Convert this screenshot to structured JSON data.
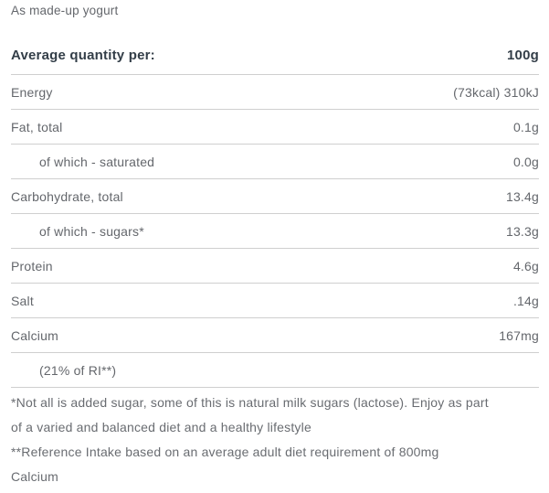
{
  "subtitle": "As made-up yogurt",
  "table": {
    "header": {
      "label": "Average quantity per:",
      "value": "100g"
    },
    "rows": [
      {
        "label": "Energy",
        "value": "(73kcal) 310kJ",
        "indent": false
      },
      {
        "label": "Fat, total",
        "value": "0.1g",
        "indent": false
      },
      {
        "label": "of which - saturated",
        "value": "0.0g",
        "indent": true
      },
      {
        "label": "Carbohydrate, total",
        "value": "13.4g",
        "indent": false
      },
      {
        "label": "of which - sugars*",
        "value": "13.3g",
        "indent": true
      },
      {
        "label": "Protein",
        "value": "4.6g",
        "indent": false
      },
      {
        "label": "Salt",
        "value": ".14g",
        "indent": false
      },
      {
        "label": "Calcium",
        "value": "167mg",
        "indent": false
      },
      {
        "label": "(21% of RI**)",
        "value": "",
        "indent": true
      }
    ]
  },
  "footnotes": [
    {
      "text": "*Not all is added sugar, some of this is natural milk sugars (lactose). Enjoy as part of a varied and balanced diet and a healthy lifestyle",
      "lines": [
        "*Not all is added sugar, some of this is natural milk sugars (lactose). Enjoy as part",
        "of a varied and balanced diet and a healthy lifestyle"
      ]
    },
    {
      "text": "**Reference Intake based on an average adult diet requirement of 800mg Calcium",
      "lines": [
        "**Reference Intake based on an average adult diet requirement of 800mg",
        "Calcium"
      ]
    }
  ],
  "colors": {
    "background": "#ffffff",
    "heading_text": "#333e48",
    "body_text": "#64676c",
    "footnote_text": "#696c71",
    "divider": "#cfcfcf"
  }
}
